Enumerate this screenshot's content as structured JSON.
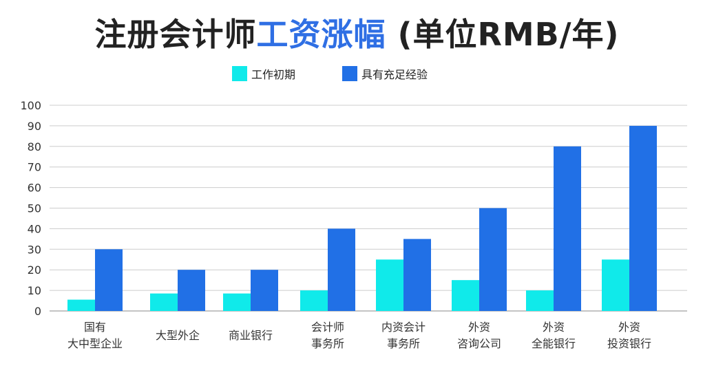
{
  "title": {
    "part1": "注册会计师",
    "part2": "工资涨幅",
    "part3": " (单位RMB/年)"
  },
  "colors": {
    "title_text": "#222222",
    "title_accent": "#2f6fe4",
    "series_entry": "#10eaea",
    "series_experienced": "#2170e6",
    "grid": "#cccccc",
    "axis": "#888888"
  },
  "chart_data": {
    "type": "bar",
    "title": "注册会计师工资涨幅 (单位RMB/年)",
    "xlabel": "",
    "ylabel": "",
    "ylim": [
      0,
      100
    ],
    "yticks": [
      0,
      10,
      20,
      30,
      40,
      50,
      60,
      70,
      80,
      90,
      100
    ],
    "grid": true,
    "legend_position": "top-center",
    "categories": [
      [
        "国有",
        "大中型企业"
      ],
      [
        "大型外企"
      ],
      [
        "商业银行"
      ],
      [
        "会计师",
        "事务所"
      ],
      [
        "内资会计",
        "事务所"
      ],
      [
        "外资",
        "咨询公司"
      ],
      [
        "外资",
        "全能银行"
      ],
      [
        "外资",
        "投资银行"
      ]
    ],
    "series": [
      {
        "name": "工作初期",
        "color": "#10eaea",
        "values": [
          5.5,
          8.5,
          8.5,
          10,
          25,
          15,
          10,
          25
        ]
      },
      {
        "name": "具有充足经验",
        "color": "#2170e6",
        "values": [
          30,
          20,
          20,
          40,
          35,
          50,
          80,
          90
        ]
      }
    ]
  }
}
